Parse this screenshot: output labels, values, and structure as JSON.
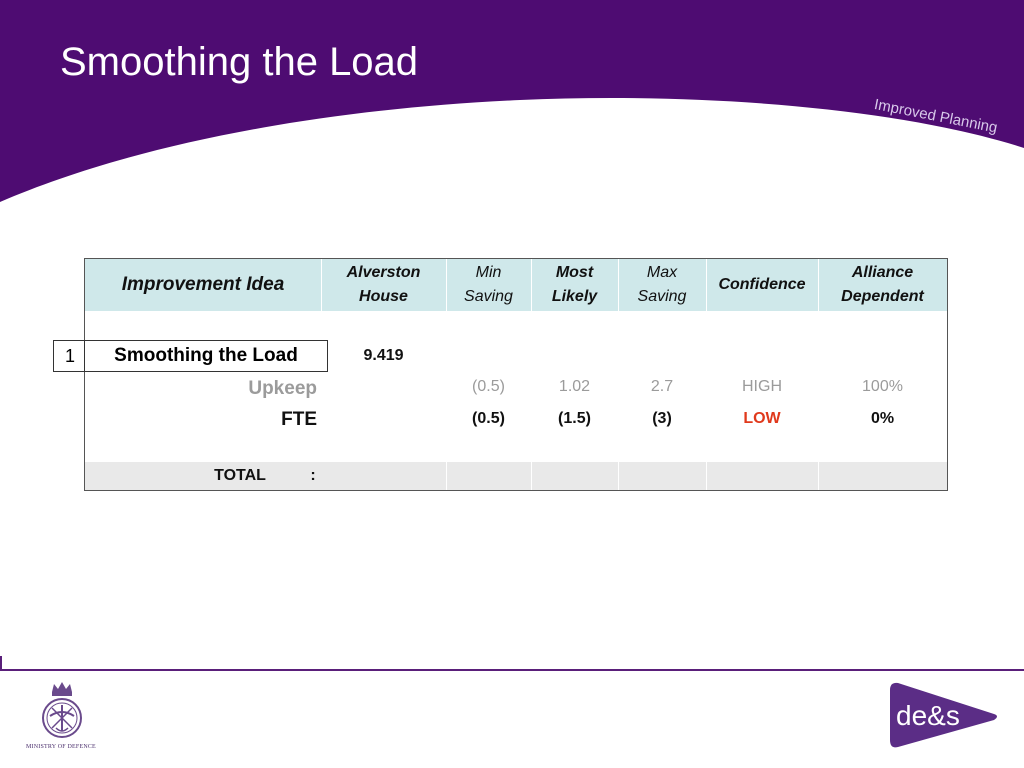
{
  "slide": {
    "title": "Smoothing the Load",
    "tag": "Improved Planning"
  },
  "colors": {
    "header_purple": "#4e0c72",
    "table_header_bg": "#cfe8ea",
    "total_row_bg": "#e9e9e9",
    "low_confidence": "#e0391c",
    "muted_text": "#9b9b9b"
  },
  "table": {
    "headers": {
      "idea": "Improvement Idea",
      "alverston_1": "Alverston",
      "alverston_2": "House",
      "min_1": "Min",
      "min_2": "Saving",
      "most_1": "Most",
      "most_2": "Likely",
      "max_1": "Max",
      "max_2": "Saving",
      "confidence": "Confidence",
      "alliance_1": "Alliance",
      "alliance_2": "Dependent"
    },
    "item": {
      "index": "1",
      "name": "Smoothing the Load",
      "alverston_value": "9.419"
    },
    "rows": {
      "upkeep": {
        "label": "Upkeep",
        "min": "(0.5)",
        "most": "1.02",
        "max": "2.7",
        "confidence": "HIGH",
        "alliance": "100%"
      },
      "fte": {
        "label": "FTE",
        "min": "(0.5)",
        "most": "(1.5)",
        "max": "(3)",
        "confidence": "LOW",
        "alliance": "0%"
      }
    },
    "total": {
      "label": "TOTAL",
      "colon": ":"
    }
  },
  "footer": {
    "mod_label": "MINISTRY OF DEFENCE",
    "logo_text": "de&s"
  }
}
